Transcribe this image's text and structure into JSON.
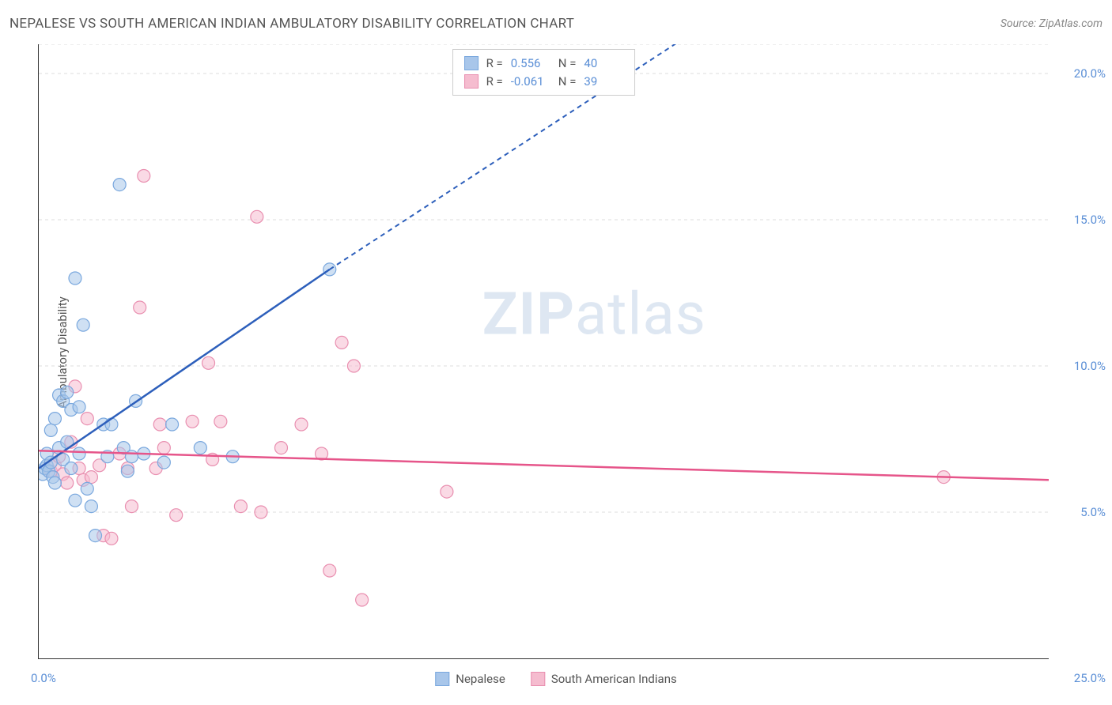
{
  "header": {
    "title": "NEPALESE VS SOUTH AMERICAN INDIAN AMBULATORY DISABILITY CORRELATION CHART",
    "source_prefix": "Source: ",
    "source_name": "ZipAtlas.com"
  },
  "y_axis": {
    "label": "Ambulatory Disability"
  },
  "watermark": {
    "bold": "ZIP",
    "rest": "atlas"
  },
  "chart": {
    "type": "scatter-with-trend",
    "xlim": [
      0,
      25
    ],
    "ylim": [
      0,
      21
    ],
    "background_color": "#ffffff",
    "grid_color": "#dddddd",
    "grid_dash": "4,4",
    "axis_color": "#333333",
    "x_ticks": [
      0,
      5,
      10,
      15,
      20,
      25
    ],
    "y_ticks": [
      5,
      10,
      15,
      20
    ],
    "y_tick_labels": [
      "5.0%",
      "10.0%",
      "15.0%",
      "20.0%"
    ],
    "x_tick_label_start": "0.0%",
    "x_tick_label_end": "25.0%",
    "marker_radius": 8,
    "marker_opacity": 0.55,
    "trend_width_solid": 2.5,
    "trend_width_dash": 2,
    "trend_dash": "6,5",
    "series": [
      {
        "name": "Nepalese",
        "color_stroke": "#7aa8de",
        "color_fill": "#a8c6ea",
        "trend_color": "#2d5fbb",
        "trend": {
          "x1": 0,
          "y1": 6.5,
          "x2": 7.2,
          "y2": 13.3,
          "dash_extend_x": 16.3,
          "dash_extend_y": 21.5
        },
        "points": [
          [
            0.1,
            6.3
          ],
          [
            0.15,
            6.5
          ],
          [
            0.2,
            6.6
          ],
          [
            0.2,
            7.0
          ],
          [
            0.25,
            6.4
          ],
          [
            0.3,
            6.7
          ],
          [
            0.3,
            7.8
          ],
          [
            0.35,
            6.2
          ],
          [
            0.4,
            8.2
          ],
          [
            0.4,
            6.0
          ],
          [
            0.5,
            9.0
          ],
          [
            0.5,
            7.2
          ],
          [
            0.6,
            8.8
          ],
          [
            0.6,
            6.8
          ],
          [
            0.7,
            7.4
          ],
          [
            0.7,
            9.1
          ],
          [
            0.8,
            8.5
          ],
          [
            0.8,
            6.5
          ],
          [
            0.9,
            13.0
          ],
          [
            0.9,
            5.4
          ],
          [
            1.0,
            8.6
          ],
          [
            1.0,
            7.0
          ],
          [
            1.1,
            11.4
          ],
          [
            1.2,
            5.8
          ],
          [
            1.3,
            5.2
          ],
          [
            1.4,
            4.2
          ],
          [
            1.6,
            8.0
          ],
          [
            1.7,
            6.9
          ],
          [
            1.8,
            8.0
          ],
          [
            2.0,
            16.2
          ],
          [
            2.1,
            7.2
          ],
          [
            2.2,
            6.4
          ],
          [
            2.3,
            6.9
          ],
          [
            2.4,
            8.8
          ],
          [
            2.6,
            7.0
          ],
          [
            3.1,
            6.7
          ],
          [
            3.3,
            8.0
          ],
          [
            4.0,
            7.2
          ],
          [
            4.8,
            6.9
          ],
          [
            7.2,
            13.3
          ]
        ]
      },
      {
        "name": "South American Indians",
        "color_stroke": "#e98fb0",
        "color_fill": "#f5bccf",
        "trend_color": "#e6558a",
        "trend": {
          "x1": 0,
          "y1": 7.1,
          "x2": 25,
          "y2": 6.1
        },
        "points": [
          [
            0.3,
            6.4
          ],
          [
            0.4,
            6.6
          ],
          [
            0.5,
            6.9
          ],
          [
            0.6,
            6.3
          ],
          [
            0.7,
            6.0
          ],
          [
            0.8,
            7.4
          ],
          [
            0.9,
            9.3
          ],
          [
            1.0,
            6.5
          ],
          [
            1.1,
            6.1
          ],
          [
            1.2,
            8.2
          ],
          [
            1.3,
            6.2
          ],
          [
            1.5,
            6.6
          ],
          [
            1.6,
            4.2
          ],
          [
            1.8,
            4.1
          ],
          [
            2.0,
            7.0
          ],
          [
            2.2,
            6.5
          ],
          [
            2.3,
            5.2
          ],
          [
            2.5,
            12.0
          ],
          [
            2.6,
            16.5
          ],
          [
            2.9,
            6.5
          ],
          [
            3.0,
            8.0
          ],
          [
            3.1,
            7.2
          ],
          [
            3.4,
            4.9
          ],
          [
            3.8,
            8.1
          ],
          [
            4.2,
            10.1
          ],
          [
            4.3,
            6.8
          ],
          [
            4.5,
            8.1
          ],
          [
            5.0,
            5.2
          ],
          [
            5.4,
            15.1
          ],
          [
            5.5,
            5.0
          ],
          [
            6.0,
            7.2
          ],
          [
            6.5,
            8.0
          ],
          [
            7.0,
            7.0
          ],
          [
            7.2,
            3.0
          ],
          [
            7.5,
            10.8
          ],
          [
            7.8,
            10.0
          ],
          [
            8.0,
            2.0
          ],
          [
            10.1,
            5.7
          ],
          [
            22.4,
            6.2
          ]
        ]
      }
    ]
  },
  "stats_legend": {
    "rows": [
      {
        "swatch_fill": "#a8c6ea",
        "swatch_stroke": "#7aa8de",
        "r_label": "R =",
        "r_value": "0.556",
        "n_label": "N =",
        "n_value": "40"
      },
      {
        "swatch_fill": "#f5bccf",
        "swatch_stroke": "#e98fb0",
        "r_label": "R =",
        "r_value": "-0.061",
        "n_label": "N =",
        "n_value": "39"
      }
    ]
  },
  "bottom_legend": {
    "items": [
      {
        "swatch_fill": "#a8c6ea",
        "swatch_stroke": "#7aa8de",
        "label": "Nepalese"
      },
      {
        "swatch_fill": "#f5bccf",
        "swatch_stroke": "#e98fb0",
        "label": "South American Indians"
      }
    ]
  }
}
